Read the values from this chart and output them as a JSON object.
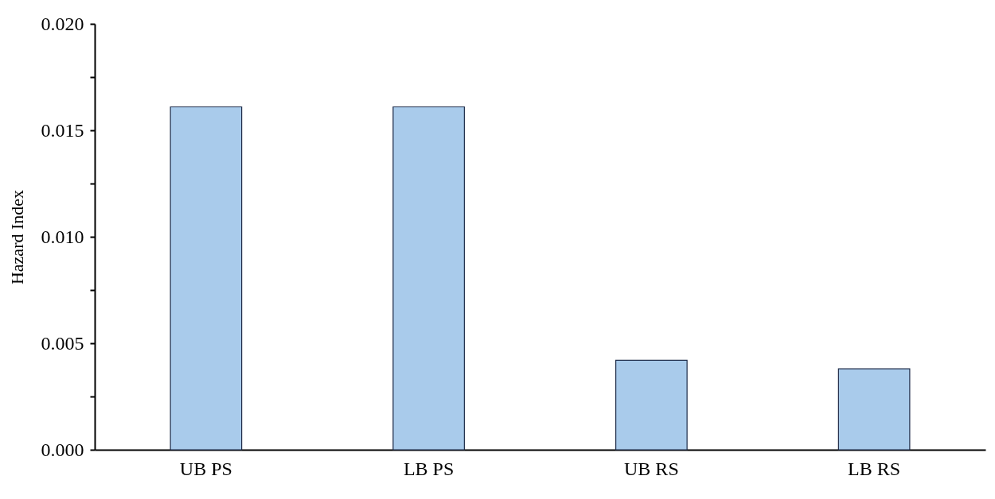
{
  "chart_data": {
    "type": "bar",
    "ylabel": "Hazard Index",
    "categories": [
      "UB PS",
      "LB PS",
      "UB RS",
      "LB RS"
    ],
    "values": [
      0.0161,
      0.0161,
      0.0042,
      0.0038
    ],
    "color": "#a9cbeb",
    "ylim": [
      0,
      0.02
    ],
    "yticks": [
      {
        "value": 0,
        "label": "0.000"
      },
      {
        "value": 0.0025,
        "label": null
      },
      {
        "value": 0.005,
        "label": "0.005"
      },
      {
        "value": 0.0075,
        "label": null
      },
      {
        "value": 0.01,
        "label": "0.010"
      },
      {
        "value": 0.0125,
        "label": null
      },
      {
        "value": 0.015,
        "label": "0.015"
      },
      {
        "value": 0.0175,
        "label": null
      },
      {
        "value": 0.02,
        "label": "0.020"
      }
    ],
    "grid": false
  }
}
